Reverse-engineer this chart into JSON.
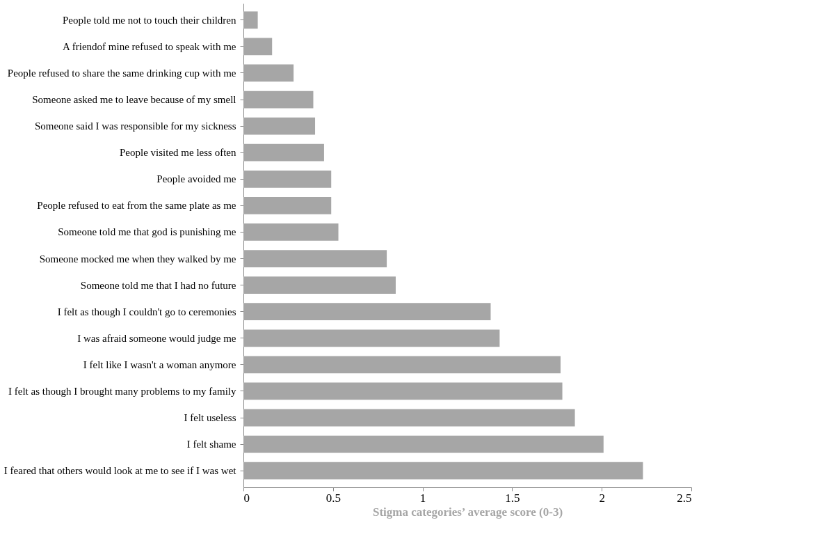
{
  "chart_data": {
    "type": "bar",
    "orientation": "horizontal",
    "xlabel": "Stigma categories’ average score (0-3)",
    "categories": [
      "People told me not to touch their children",
      "A friendof mine refused to speak with me",
      "People refused to share the same drinking cup with me",
      "Someone asked me to leave because of my smell",
      "Someone said I was responsible for my sickness",
      "People visited me less often",
      "People avoided me",
      "People refused to eat from the same plate as me",
      "Someone told me that god is punishing me",
      "Someone mocked me when they walked by me",
      "Someone told me that I had no future",
      "I felt as though I couldn't go to ceremonies",
      "I was afraid someone would judge me",
      "I felt like I wasn't a woman anymore",
      "I felt as though I brought many problems to my family",
      "I felt useless",
      "I felt shame",
      "I feared that others would look at me to see if I was wet"
    ],
    "values": [
      0.08,
      0.16,
      0.28,
      0.39,
      0.4,
      0.45,
      0.49,
      0.49,
      0.53,
      0.8,
      0.85,
      1.38,
      1.43,
      1.77,
      1.78,
      1.85,
      2.01,
      2.23
    ],
    "color": "#a6a6a6",
    "xlim": [
      0,
      2.5
    ],
    "xticks": [
      0,
      0.5,
      1,
      1.5,
      2,
      2.5
    ],
    "grid": false
  }
}
